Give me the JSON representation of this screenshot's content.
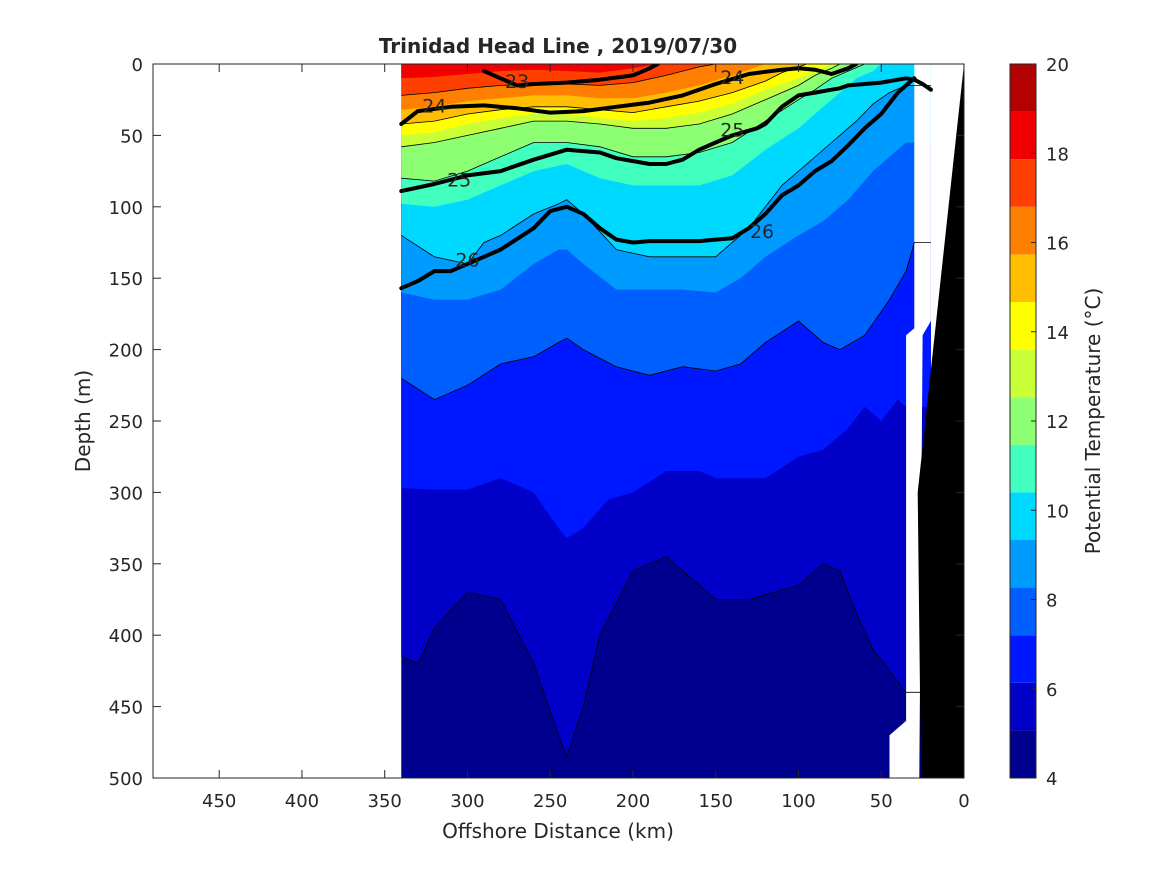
{
  "chart_data": {
    "type": "contour",
    "title": "Trinidad Head Line , 2019/07/30",
    "xlabel": "Offshore Distance (km)",
    "ylabel": "Depth (m)",
    "xlim": [
      490,
      0
    ],
    "ylim": [
      0,
      500
    ],
    "x_reversed": true,
    "y_reversed": true,
    "x_ticks": [
      450,
      400,
      350,
      300,
      250,
      200,
      150,
      100,
      50,
      0
    ],
    "y_ticks": [
      0,
      50,
      100,
      150,
      200,
      250,
      300,
      350,
      400,
      450,
      500
    ],
    "data_extent_x_km": [
      340,
      20
    ],
    "colorbar": {
      "label": "Potential Temperature (°C)",
      "range": [
        4,
        20
      ],
      "tick_values": [
        4,
        6,
        8,
        10,
        12,
        14,
        16,
        18,
        20
      ],
      "tick_labels": [
        "4",
        "6",
        "8",
        "10",
        "12",
        "14",
        "16",
        "18",
        "20"
      ],
      "colors": [
        "#00008f",
        "#0000c8",
        "#0018ff",
        "#0060ff",
        "#009bff",
        "#00d9ff",
        "#40ffbf",
        "#8cff73",
        "#c8ff37",
        "#ffff00",
        "#ffbf00",
        "#ff8000",
        "#ff3f00",
        "#f00000",
        "#b30000"
      ]
    },
    "temperature_layers": [
      {
        "above_celsius": 4,
        "x": [
          340,
          20
        ],
        "depth": [
          [
            0,
            0
          ],
          [
            500,
            500
          ]
        ]
      },
      {
        "above_celsius": 5,
        "x": [
          340,
          330,
          320,
          300,
          280,
          260,
          245,
          240,
          230,
          220,
          200,
          180,
          160,
          150,
          130,
          100,
          85,
          75,
          65,
          55,
          45,
          35,
          20
        ],
        "depth": [
          415,
          420,
          395,
          370,
          375,
          420,
          470,
          485,
          450,
          400,
          355,
          345,
          365,
          375,
          375,
          365,
          350,
          355,
          385,
          410,
          425,
          440,
          440
        ]
      },
      {
        "above_celsius": 6,
        "x": [
          340,
          320,
          300,
          280,
          260,
          245,
          240,
          230,
          215,
          200,
          180,
          160,
          150,
          120,
          100,
          85,
          70,
          60,
          50,
          40,
          35,
          20
        ],
        "depth": [
          297,
          298,
          298,
          290,
          300,
          325,
          332,
          325,
          305,
          300,
          285,
          285,
          290,
          290,
          275,
          270,
          255,
          240,
          250,
          235,
          240,
          240
        ]
      },
      {
        "above_celsius": 7,
        "x": [
          340,
          320,
          300,
          280,
          260,
          245,
          240,
          230,
          210,
          190,
          170,
          150,
          135,
          120,
          100,
          85,
          75,
          60,
          45,
          35,
          30,
          20
        ],
        "depth": [
          220,
          235,
          225,
          210,
          205,
          195,
          192,
          200,
          212,
          218,
          212,
          215,
          210,
          195,
          180,
          195,
          200,
          190,
          165,
          145,
          125,
          125
        ]
      },
      {
        "above_celsius": 8,
        "x": [
          340,
          320,
          300,
          280,
          260,
          245,
          240,
          230,
          210,
          190,
          170,
          150,
          135,
          120,
          100,
          85,
          70,
          55,
          45,
          35,
          20
        ],
        "depth": [
          160,
          165,
          165,
          158,
          140,
          130,
          130,
          140,
          158,
          158,
          158,
          160,
          150,
          135,
          120,
          110,
          95,
          75,
          65,
          55,
          55
        ]
      },
      {
        "above_celsius": 9,
        "x": [
          340,
          320,
          300,
          290,
          280,
          260,
          245,
          240,
          230,
          210,
          190,
          170,
          150,
          130,
          110,
          95,
          80,
          65,
          55,
          45,
          35,
          20
        ],
        "depth": [
          120,
          135,
          140,
          125,
          120,
          105,
          98,
          95,
          105,
          130,
          135,
          135,
          135,
          115,
          85,
          70,
          55,
          40,
          28,
          20,
          15,
          15
        ]
      },
      {
        "above_celsius": 10,
        "x": [
          340,
          320,
          300,
          280,
          260,
          240,
          220,
          200,
          180,
          160,
          140,
          120,
          100,
          85,
          75,
          65,
          55,
          50,
          45,
          40,
          35,
          20
        ],
        "depth": [
          98,
          100,
          95,
          85,
          75,
          70,
          80,
          85,
          85,
          85,
          78,
          60,
          45,
          30,
          20,
          10,
          5,
          0,
          0,
          0,
          0,
          0
        ]
      },
      {
        "above_celsius": 11,
        "x": [
          340,
          320,
          300,
          280,
          260,
          240,
          220,
          200,
          180,
          160,
          140,
          120,
          100,
          90,
          80,
          70,
          60,
          55
        ],
        "depth": [
          80,
          82,
          75,
          65,
          55,
          55,
          58,
          65,
          65,
          62,
          55,
          40,
          25,
          18,
          10,
          5,
          0,
          0
        ]
      },
      {
        "above_celsius": 12,
        "x": [
          340,
          320,
          300,
          280,
          260,
          240,
          220,
          200,
          180,
          160,
          140,
          120,
          100,
          90,
          80,
          70
        ],
        "depth": [
          68,
          66,
          60,
          52,
          45,
          45,
          50,
          55,
          55,
          50,
          45,
          32,
          18,
          10,
          5,
          0
        ]
      },
      {
        "above_celsius": 13,
        "x": [
          340,
          320,
          300,
          280,
          260,
          240,
          220,
          200,
          180,
          160,
          140,
          120,
          100,
          90,
          80,
          75
        ],
        "depth": [
          58,
          55,
          50,
          45,
          40,
          40,
          42,
          45,
          45,
          42,
          35,
          25,
          15,
          8,
          3,
          0
        ]
      },
      {
        "above_celsius": 14,
        "x": [
          340,
          320,
          300,
          280,
          260,
          240,
          220,
          200,
          180,
          160,
          140,
          120,
          100,
          90,
          80
        ],
        "depth": [
          50,
          48,
          42,
          38,
          35,
          35,
          38,
          40,
          38,
          34,
          28,
          18,
          10,
          5,
          0
        ]
      },
      {
        "above_celsius": 15,
        "x": [
          340,
          320,
          300,
          280,
          260,
          240,
          220,
          200,
          180,
          160,
          140,
          120,
          110,
          100,
          95
        ],
        "depth": [
          42,
          40,
          35,
          32,
          30,
          30,
          32,
          34,
          30,
          26,
          20,
          12,
          6,
          2,
          0
        ]
      },
      {
        "above_celsius": 16,
        "x": [
          340,
          320,
          300,
          280,
          260,
          240,
          220,
          200,
          180,
          160,
          140,
          130,
          120
        ],
        "depth": [
          32,
          30,
          26,
          24,
          22,
          22,
          24,
          24,
          20,
          15,
          8,
          4,
          0
        ]
      },
      {
        "above_celsius": 17,
        "x": [
          340,
          320,
          300,
          280,
          260,
          240,
          220,
          200,
          180,
          170,
          160,
          150
        ],
        "depth": [
          22,
          20,
          17,
          15,
          14,
          14,
          15,
          13,
          8,
          5,
          2,
          0
        ]
      },
      {
        "above_celsius": 18,
        "x": [
          340,
          320,
          300,
          280,
          260,
          240,
          220,
          200,
          190,
          180
        ],
        "depth": [
          10,
          9,
          7,
          5,
          4,
          5,
          6,
          3,
          1,
          0
        ]
      }
    ],
    "density_contours": [
      {
        "label": "23",
        "x": [
          290,
          280,
          270,
          260,
          240,
          220,
          200,
          190,
          185
        ],
        "depth": [
          5,
          10,
          15,
          14,
          13,
          11,
          8,
          3,
          0
        ]
      },
      {
        "label": "24",
        "x": [
          340,
          330,
          310,
          290,
          270,
          250,
          230,
          210,
          190,
          170,
          150,
          130,
          110,
          100,
          90,
          80,
          70,
          65
        ],
        "depth": [
          42,
          33,
          30,
          29,
          31,
          34,
          33,
          30,
          27,
          22,
          14,
          7,
          4,
          3,
          4,
          7,
          3,
          0
        ]
      },
      {
        "label": "25",
        "x": [
          340,
          320,
          300,
          280,
          260,
          240,
          220,
          210,
          200,
          190,
          180,
          170,
          160,
          150,
          140,
          125,
          120,
          110,
          100,
          90,
          80,
          75,
          70,
          60,
          50,
          40,
          35,
          30,
          25,
          20
        ],
        "depth": [
          89,
          84,
          78,
          75,
          67,
          60,
          62,
          66,
          68,
          70,
          70,
          67,
          60,
          55,
          50,
          45,
          42,
          30,
          22,
          20,
          18,
          17,
          15,
          14,
          13,
          11,
          10,
          11,
          14,
          18
        ]
      },
      {
        "label": "26",
        "x": [
          340,
          330,
          320,
          310,
          300,
          290,
          280,
          260,
          250,
          240,
          230,
          220,
          210,
          200,
          190,
          180,
          170,
          160,
          150,
          140,
          130,
          120,
          110,
          100,
          90,
          80,
          70,
          60,
          50,
          40,
          35,
          30
        ],
        "depth": [
          157,
          152,
          145,
          145,
          140,
          135,
          130,
          115,
          103,
          100,
          105,
          115,
          123,
          125,
          124,
          124,
          124,
          124,
          123,
          122,
          115,
          105,
          92,
          85,
          75,
          68,
          57,
          45,
          35,
          20,
          15,
          10
        ]
      }
    ],
    "contour_labels": [
      {
        "text": "23",
        "x": 270,
        "depth": 12
      },
      {
        "text": "24",
        "x": 320,
        "depth": 29
      },
      {
        "text": "24",
        "x": 140,
        "depth": 9
      },
      {
        "text": "25",
        "x": 140,
        "depth": 46
      },
      {
        "text": "25",
        "x": 305,
        "depth": 81
      },
      {
        "text": "26",
        "x": 122,
        "depth": 117
      },
      {
        "text": "26",
        "x": 300,
        "depth": 137
      }
    ]
  }
}
